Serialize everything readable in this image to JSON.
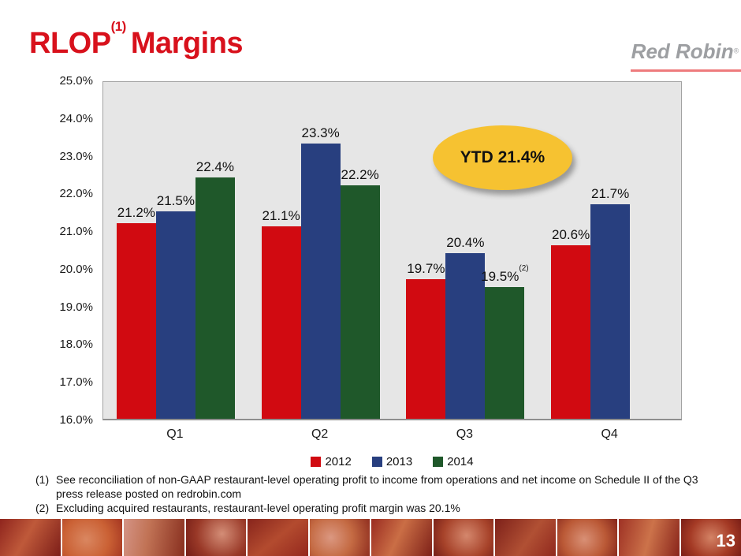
{
  "slide": {
    "title": {
      "prefix": "RLOP",
      "superscript": "(1)",
      "suffix": "Margins"
    },
    "logo": {
      "text": "Red Robin",
      "registered": "®"
    },
    "page_number": "13"
  },
  "chart_data": {
    "type": "bar",
    "title": "RLOP Margins",
    "categories": [
      "Q1",
      "Q2",
      "Q3",
      "Q4"
    ],
    "series": [
      {
        "name": "2012",
        "color": "#d10a11",
        "values": [
          21.2,
          21.1,
          19.7,
          20.6
        ],
        "labels": [
          "21.2%",
          "21.1%",
          "19.7%",
          "20.6%"
        ],
        "label_superscripts": [
          null,
          null,
          null,
          null
        ]
      },
      {
        "name": "2013",
        "color": "#283f7f",
        "values": [
          21.5,
          23.3,
          20.4,
          21.7
        ],
        "labels": [
          "21.5%",
          "23.3%",
          "20.4%",
          "21.7%"
        ],
        "label_superscripts": [
          null,
          null,
          null,
          null
        ]
      },
      {
        "name": "2014",
        "color": "#1f582a",
        "values": [
          22.4,
          22.2,
          19.5,
          null
        ],
        "labels": [
          "22.4%",
          "22.2%",
          "19.5%",
          null
        ],
        "label_superscripts": [
          null,
          null,
          "(2)",
          null
        ]
      }
    ],
    "ylim": [
      16,
      25
    ],
    "ytick_labels": [
      "25.0%",
      "24.0%",
      "23.0%",
      "22.0%",
      "21.0%",
      "20.0%",
      "19.0%",
      "18.0%",
      "17.0%",
      "16.0%"
    ],
    "grid": false,
    "legend_position": "bottom",
    "plot_background": "#e6e6e6",
    "annotation": {
      "text": "YTD 21.4%",
      "fill": "#f6c231"
    }
  },
  "footnotes": [
    {
      "marker": "(1)",
      "text": "See reconciliation of non-GAAP restaurant-level operating profit to income from operations and net income on Schedule II of the Q3 press release posted on redrobin.com"
    },
    {
      "marker": "(2)",
      "text": "Excluding acquired restaurants, restaurant-level operating profit margin was 20.1%"
    }
  ]
}
